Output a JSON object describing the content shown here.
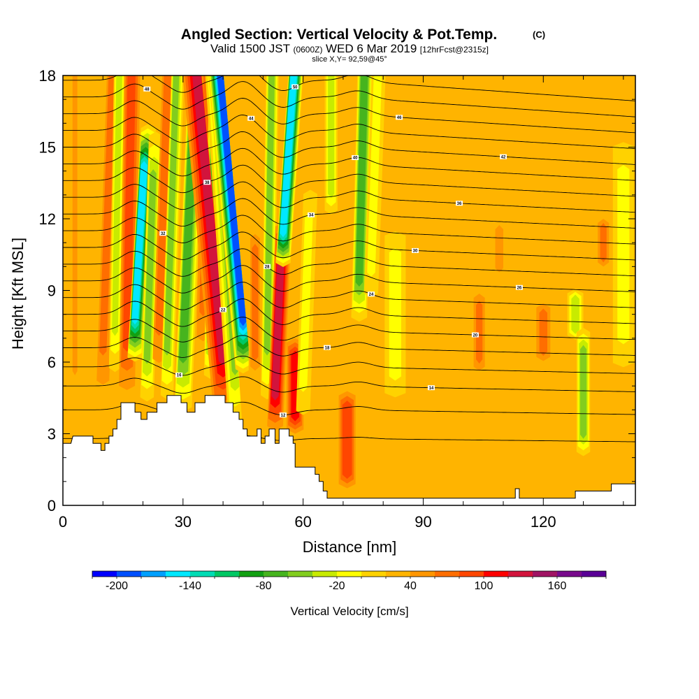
{
  "chart_data": {
    "type": "heatmap",
    "title": "Angled Section: Vertical Velocity & Pot.Temp.",
    "title_unit": "(C)",
    "subtitle": {
      "valid": "Valid 1500 JST",
      "utc": "(0600Z)",
      "date": "WED 6 Mar 2019",
      "forecast": "[12hrFcst@2315z]"
    },
    "slice": "slice X,Y= 92,59@45°",
    "xlabel": "Distance [nm]",
    "ylabel": "Height [Kft MSL]",
    "xlim": [
      0,
      143
    ],
    "ylim": [
      0,
      18
    ],
    "xticks": [
      0,
      30,
      60,
      90,
      120
    ],
    "yticks": [
      0,
      3,
      6,
      9,
      12,
      15,
      18
    ],
    "background_value": 20,
    "colorbar": {
      "label": "Vertical Velocity [cm/s]",
      "bounds": [
        -220,
        200
      ],
      "step": 20,
      "tick_values": [
        -200,
        -140,
        -80,
        -20,
        40,
        100,
        160
      ],
      "colors": [
        "#0000ff",
        "#0050ff",
        "#00a0ff",
        "#00e8ff",
        "#00dcb4",
        "#00c864",
        "#12a012",
        "#46b41e",
        "#82cd1e",
        "#c8eb00",
        "#ffff00",
        "#ffd200",
        "#ffb400",
        "#ff9600",
        "#ff6e00",
        "#ff4600",
        "#ff0000",
        "#d2143c",
        "#a01464",
        "#780a8c",
        "#5a0096"
      ]
    },
    "bands": [
      {
        "x": 3,
        "v": 40,
        "w": 1.2,
        "y0": 3,
        "y1": 18,
        "tilt": 0
      },
      {
        "x": 10,
        "v": 60,
        "w": 1.8,
        "y0": 4,
        "y1": 18,
        "tilt": 0.2
      },
      {
        "x": 13,
        "v": -40,
        "w": 1.5,
        "y0": 5,
        "y1": 18,
        "tilt": 0.1
      },
      {
        "x": 16,
        "v": 80,
        "w": 2.0,
        "y0": 4.2,
        "y1": 18,
        "tilt": 0.1
      },
      {
        "x": 18,
        "v": -150,
        "w": 1.6,
        "y0": 6,
        "y1": 16,
        "tilt": 0.35
      },
      {
        "x": 21,
        "v": -60,
        "w": 1.6,
        "y0": 4,
        "y1": 16,
        "tilt": 0.2
      },
      {
        "x": 24,
        "v": 60,
        "w": 1.8,
        "y0": 5,
        "y1": 18,
        "tilt": 0.2
      },
      {
        "x": 26,
        "v": -60,
        "w": 1.5,
        "y0": 4,
        "y1": 18,
        "tilt": 0.2
      },
      {
        "x": 30,
        "v": -80,
        "w": 2.0,
        "y0": 3.6,
        "y1": 18,
        "tilt": 0.25
      },
      {
        "x": 35,
        "v": 60,
        "w": 1.8,
        "y0": 6,
        "y1": 18,
        "tilt": 0.1
      },
      {
        "x": 37,
        "v": -70,
        "w": 1.6,
        "y0": 5,
        "y1": 18,
        "tilt": 0.1
      },
      {
        "x": 40,
        "v": 120,
        "w": 2.2,
        "y0": 3.5,
        "y1": 18,
        "tilt": -0.55
      },
      {
        "x": 43,
        "v": -60,
        "w": 1.6,
        "y0": 3,
        "y1": 18,
        "tilt": -0.4
      },
      {
        "x": 45,
        "v": -200,
        "w": 1.6,
        "y0": 5.5,
        "y1": 18,
        "tilt": -0.55
      },
      {
        "x": 48,
        "v": 70,
        "w": 1.6,
        "y0": 5,
        "y1": 12,
        "tilt": 0
      },
      {
        "x": 51,
        "v": -60,
        "w": 1.5,
        "y0": 4,
        "y1": 18,
        "tilt": 0.1
      },
      {
        "x": 53,
        "v": 120,
        "w": 1.8,
        "y0": 3,
        "y1": 12,
        "tilt": 0.25
      },
      {
        "x": 55,
        "v": -160,
        "w": 1.6,
        "y0": 10,
        "y1": 18,
        "tilt": 0.4
      },
      {
        "x": 58,
        "v": 100,
        "w": 2.0,
        "y0": 3,
        "y1": 7,
        "tilt": 0
      },
      {
        "x": 60,
        "v": -20,
        "w": 2.0,
        "y0": 3,
        "y1": 14,
        "tilt": 0.2
      },
      {
        "x": 67,
        "v": -40,
        "w": 1.6,
        "y0": 12,
        "y1": 18,
        "tilt": 0
      },
      {
        "x": 71,
        "v": 90,
        "w": 2.4,
        "y0": 0.5,
        "y1": 5,
        "tilt": 0
      },
      {
        "x": 74,
        "v": -80,
        "w": 1.8,
        "y0": 7.5,
        "y1": 18,
        "tilt": 0.15
      },
      {
        "x": 77,
        "v": -20,
        "w": 2.0,
        "y0": 8,
        "y1": 18,
        "tilt": 0.2
      },
      {
        "x": 83,
        "v": -20,
        "w": 3.0,
        "y0": 4,
        "y1": 12,
        "tilt": 0
      },
      {
        "x": 104,
        "v": 60,
        "w": 1.6,
        "y0": 5.5,
        "y1": 9,
        "tilt": 0
      },
      {
        "x": 109,
        "v": 40,
        "w": 2.0,
        "y0": 9.5,
        "y1": 12,
        "tilt": 0
      },
      {
        "x": 120,
        "v": 60,
        "w": 2.0,
        "y0": 6,
        "y1": 8.5,
        "tilt": 0
      },
      {
        "x": 128,
        "v": -40,
        "w": 2.0,
        "y0": 7,
        "y1": 9,
        "tilt": 0
      },
      {
        "x": 130,
        "v": -60,
        "w": 1.6,
        "y0": 2,
        "y1": 7.5,
        "tilt": 0
      },
      {
        "x": 135,
        "v": 60,
        "w": 1.6,
        "y0": 10,
        "y1": 12,
        "tilt": 0
      },
      {
        "x": 140,
        "v": -20,
        "w": 3.0,
        "y0": 5,
        "y1": 16,
        "tilt": 0
      }
    ],
    "terrain": [
      [
        0,
        2.6
      ],
      [
        2,
        2.6
      ],
      [
        2.5,
        2.9
      ],
      [
        7.5,
        2.9
      ],
      [
        7.5,
        2.6
      ],
      [
        9.5,
        2.6
      ],
      [
        9.5,
        2.3
      ],
      [
        10.5,
        2.3
      ],
      [
        10.5,
        2.6
      ],
      [
        11.5,
        2.6
      ],
      [
        11.5,
        2.9
      ],
      [
        12.5,
        2.9
      ],
      [
        12.5,
        3.2
      ],
      [
        13.5,
        3.2
      ],
      [
        13.5,
        3.6
      ],
      [
        14.5,
        3.6
      ],
      [
        14.5,
        4.3
      ],
      [
        18,
        4.3
      ],
      [
        18,
        3.9
      ],
      [
        19.5,
        3.9
      ],
      [
        19.5,
        3.6
      ],
      [
        21,
        3.6
      ],
      [
        21,
        3.9
      ],
      [
        23.5,
        3.9
      ],
      [
        23.5,
        4.3
      ],
      [
        26,
        4.3
      ],
      [
        26,
        4.6
      ],
      [
        29.5,
        4.6
      ],
      [
        29.5,
        4.3
      ],
      [
        31,
        4.3
      ],
      [
        31,
        3.9
      ],
      [
        33,
        3.9
      ],
      [
        33,
        4.3
      ],
      [
        35.5,
        4.3
      ],
      [
        35.5,
        4.6
      ],
      [
        40.5,
        4.6
      ],
      [
        40.5,
        4.3
      ],
      [
        42.5,
        4.3
      ],
      [
        42.5,
        3.9
      ],
      [
        44,
        3.9
      ],
      [
        44,
        3.6
      ],
      [
        45,
        3.6
      ],
      [
        45,
        3.2
      ],
      [
        46,
        3.2
      ],
      [
        46,
        2.9
      ],
      [
        48.5,
        2.9
      ],
      [
        48.5,
        3.2
      ],
      [
        49.5,
        3.2
      ],
      [
        49.5,
        2.6
      ],
      [
        50.5,
        2.6
      ],
      [
        50.5,
        2.9
      ],
      [
        51.5,
        2.9
      ],
      [
        51.5,
        3.2
      ],
      [
        53,
        3.2
      ],
      [
        53,
        2.6
      ],
      [
        54,
        2.6
      ],
      [
        54,
        3.2
      ],
      [
        56.5,
        3.2
      ],
      [
        56.5,
        2.9
      ],
      [
        57.5,
        2.9
      ],
      [
        57.5,
        2.6
      ],
      [
        58,
        2.6
      ],
      [
        58,
        1.6
      ],
      [
        63,
        1.6
      ],
      [
        63,
        1.3
      ],
      [
        64,
        1.3
      ],
      [
        64,
        1.0
      ],
      [
        65,
        1.0
      ],
      [
        65,
        0.6
      ],
      [
        66,
        0.6
      ],
      [
        66,
        0.3
      ],
      [
        113,
        0.3
      ],
      [
        113,
        0.7
      ],
      [
        114,
        0.7
      ],
      [
        114,
        0.3
      ],
      [
        128,
        0.3
      ],
      [
        128,
        0.6
      ],
      [
        137,
        0.6
      ],
      [
        137,
        0.9
      ],
      [
        143,
        0.9
      ]
    ],
    "theta_lines": [
      {
        "base": 2.8,
        "amp": 0.2,
        "label": "10"
      },
      {
        "base": 4.0,
        "amp": 0.5,
        "label": "12"
      },
      {
        "base": 5.0,
        "amp": 0.6,
        "label": "14"
      },
      {
        "base": 5.8,
        "amp": 0.7,
        "label": "16"
      },
      {
        "base": 6.6,
        "amp": 0.8,
        "label": "18"
      },
      {
        "base": 7.3,
        "amp": 0.9,
        "label": "20"
      },
      {
        "base": 8.0,
        "amp": 1.0,
        "label": "22"
      },
      {
        "base": 8.7,
        "amp": 1.0,
        "label": "24"
      },
      {
        "base": 9.4,
        "amp": 1.0,
        "label": "26"
      },
      {
        "base": 10.1,
        "amp": 1.0,
        "label": "28"
      },
      {
        "base": 10.8,
        "amp": 1.0,
        "label": "30"
      },
      {
        "base": 11.5,
        "amp": 1.0,
        "label": "32"
      },
      {
        "base": 12.2,
        "amp": 1.0,
        "label": "34"
      },
      {
        "base": 12.9,
        "amp": 1.0,
        "label": "36"
      },
      {
        "base": 13.6,
        "amp": 1.0,
        "label": "38"
      },
      {
        "base": 14.3,
        "amp": 1.0,
        "label": "40"
      },
      {
        "base": 15.0,
        "amp": 1.0,
        "label": "42"
      },
      {
        "base": 15.7,
        "amp": 1.0,
        "label": "44"
      },
      {
        "base": 16.4,
        "amp": 1.0,
        "label": "46"
      },
      {
        "base": 17.1,
        "amp": 1.0,
        "label": "48"
      },
      {
        "base": 17.8,
        "amp": 1.0,
        "label": "50"
      }
    ]
  }
}
